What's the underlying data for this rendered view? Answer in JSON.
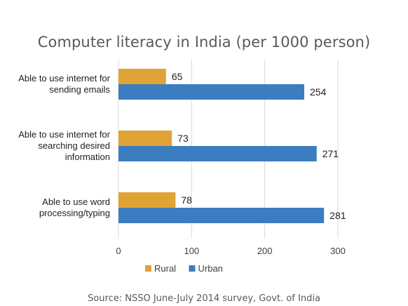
{
  "chart_data": {
    "type": "bar",
    "orientation": "horizontal",
    "title": "Computer literacy in India (per 1000 person)",
    "categories": [
      [
        "Able to use internet for",
        "sending emails"
      ],
      [
        "Able to use internet for",
        "searching desired",
        "information"
      ],
      [
        "Able to use word",
        "processing/typing"
      ]
    ],
    "series": [
      {
        "name": "Rural",
        "color": "#E0A336",
        "values": [
          65,
          73,
          78
        ]
      },
      {
        "name": "Urban",
        "color": "#3B7DC0",
        "values": [
          254,
          271,
          281
        ]
      }
    ],
    "xlim": [
      0,
      300
    ],
    "xticks": [
      0,
      100,
      200,
      300
    ],
    "grid": true,
    "legend": "bottom-left",
    "source": "Source: NSSO June-July 2014 survey, Govt. of India"
  }
}
